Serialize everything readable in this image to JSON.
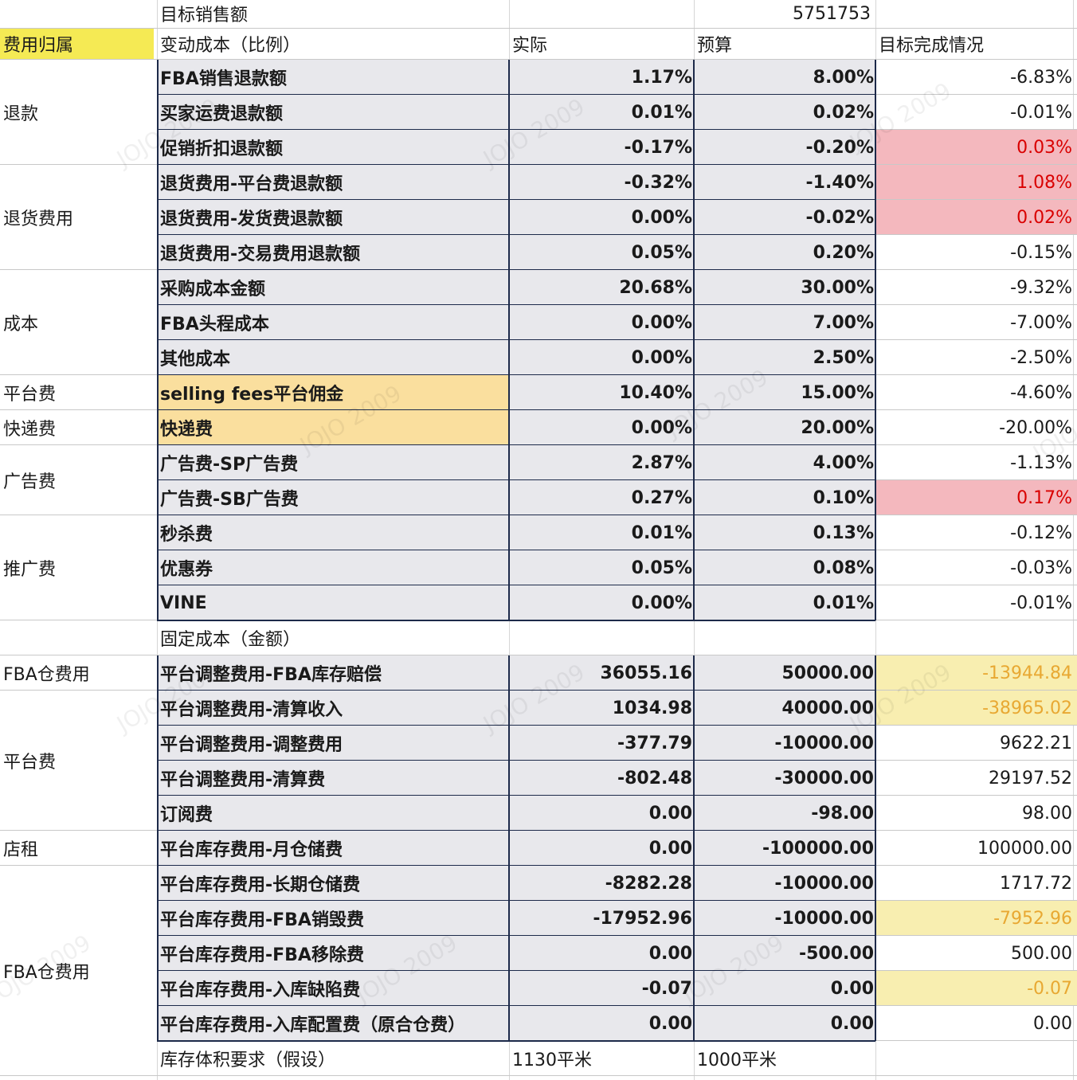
{
  "header": {
    "target_label": "目标销售额",
    "target_value": "5751753",
    "col_category": "费用归属",
    "col_variable": "变动成本（比例）",
    "col_actual": "实际",
    "col_budget": "预算",
    "col_result": "目标完成情况"
  },
  "fixed_header": "固定成本（金额）",
  "watermark": "JOJO 2009",
  "categories": [
    {
      "label": "退款"
    },
    {
      "label": "退货费用"
    },
    {
      "label": "成本"
    },
    {
      "label": "平台费"
    },
    {
      "label": "快递费"
    },
    {
      "label": "广告费"
    },
    {
      "label": "推广费"
    },
    {
      "label": "FBA仓费用"
    },
    {
      "label": "平台费"
    },
    {
      "label": "店租"
    },
    {
      "label": "FBA仓费用"
    }
  ],
  "rows": [
    {
      "item": "FBA销售退款额",
      "actual": "1.17%",
      "budget": "8.00%",
      "result": "-6.83%",
      "flag": ""
    },
    {
      "item": "买家运费退款额",
      "actual": "0.01%",
      "budget": "0.02%",
      "result": "-0.01%",
      "flag": ""
    },
    {
      "item": "促销折扣退款额",
      "actual": "-0.17%",
      "budget": "-0.20%",
      "result": "0.03%",
      "flag": "red"
    },
    {
      "item": "退货费用-平台费退款额",
      "actual": "-0.32%",
      "budget": "-1.40%",
      "result": "1.08%",
      "flag": "red"
    },
    {
      "item": "退货费用-发货费退款额",
      "actual": "0.00%",
      "budget": "-0.02%",
      "result": "0.02%",
      "flag": "red"
    },
    {
      "item": "退货费用-交易费用退款额",
      "actual": "0.05%",
      "budget": "0.20%",
      "result": "-0.15%",
      "flag": ""
    },
    {
      "item": "采购成本金额",
      "actual": "20.68%",
      "budget": "30.00%",
      "result": "-9.32%",
      "flag": ""
    },
    {
      "item": "FBA头程成本",
      "actual": "0.00%",
      "budget": "7.00%",
      "result": "-7.00%",
      "flag": ""
    },
    {
      "item": "其他成本",
      "actual": "0.00%",
      "budget": "2.50%",
      "result": "-2.50%",
      "flag": ""
    },
    {
      "item": "selling fees平台佣金",
      "actual": "10.40%",
      "budget": "15.00%",
      "result": "-4.60%",
      "flag": "",
      "orange": true
    },
    {
      "item": "快递费",
      "actual": "0.00%",
      "budget": "20.00%",
      "result": "-20.00%",
      "flag": "",
      "orange": true
    },
    {
      "item": "广告费-SP广告费",
      "actual": "2.87%",
      "budget": "4.00%",
      "result": "-1.13%",
      "flag": ""
    },
    {
      "item": "广告费-SB广告费",
      "actual": "0.27%",
      "budget": "0.10%",
      "result": "0.17%",
      "flag": "red"
    },
    {
      "item": "秒杀费",
      "actual": "0.01%",
      "budget": "0.13%",
      "result": "-0.12%",
      "flag": ""
    },
    {
      "item": "优惠券",
      "actual": "0.05%",
      "budget": "0.08%",
      "result": "-0.03%",
      "flag": ""
    },
    {
      "item": "VINE",
      "actual": "0.00%",
      "budget": "0.01%",
      "result": "-0.01%",
      "flag": ""
    },
    {
      "item": "平台调整费用-FBA库存赔偿",
      "actual": "36055.16",
      "budget": "50000.00",
      "result": "-13944.84",
      "flag": "yel"
    },
    {
      "item": "平台调整费用-清算收入",
      "actual": "1034.98",
      "budget": "40000.00",
      "result": "-38965.02",
      "flag": "yel"
    },
    {
      "item": "平台调整费用-调整费用",
      "actual": "-377.79",
      "budget": "-10000.00",
      "result": "9622.21",
      "flag": ""
    },
    {
      "item": "平台调整费用-清算费",
      "actual": "-802.48",
      "budget": "-30000.00",
      "result": "29197.52",
      "flag": ""
    },
    {
      "item": "订阅费",
      "actual": "0.00",
      "budget": "-98.00",
      "result": "98.00",
      "flag": ""
    },
    {
      "item": "平台库存费用-月仓储费",
      "actual": "0.00",
      "budget": "-100000.00",
      "result": "100000.00",
      "flag": ""
    },
    {
      "item": "平台库存费用-长期仓储费",
      "actual": "-8282.28",
      "budget": "-10000.00",
      "result": "1717.72",
      "flag": ""
    },
    {
      "item": "平台库存费用-FBA销毁费",
      "actual": "-17952.96",
      "budget": "-10000.00",
      "result": "-7952.96",
      "flag": "yel"
    },
    {
      "item": "平台库存费用-FBA移除费",
      "actual": "0.00",
      "budget": "-500.00",
      "result": "500.00",
      "flag": ""
    },
    {
      "item": "平台库存费用-入库缺陷费",
      "actual": "-0.07",
      "budget": "0.00",
      "result": "-0.07",
      "flag": "yel"
    },
    {
      "item": "平台库存费用-入库配置费（原合仓费）",
      "actual": "0.00",
      "budget": "0.00",
      "result": "0.00",
      "flag": ""
    }
  ],
  "footer": {
    "label": "库存体积要求（假设）",
    "actual": "1130平米",
    "budget": "1000平米"
  }
}
